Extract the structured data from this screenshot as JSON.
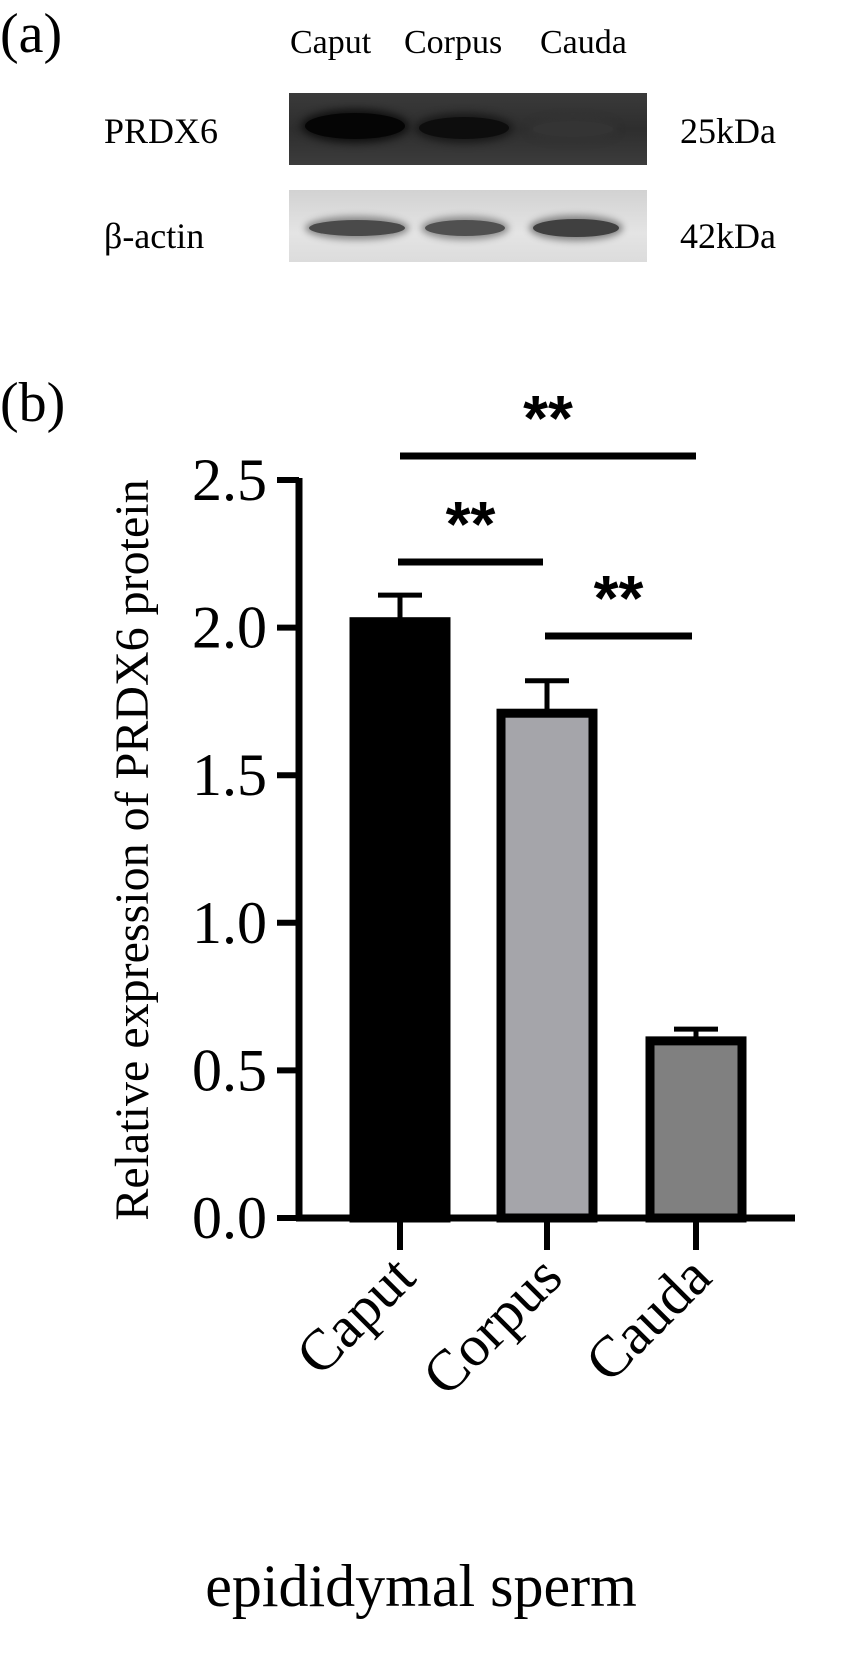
{
  "figure": {
    "panel_a_label": "(a)",
    "panel_b_label": "(b)"
  },
  "western_blot": {
    "lanes": [
      "Caput",
      "Corpus",
      "Cauda"
    ],
    "rows": [
      {
        "protein": "PRDX6",
        "size": "25kDa",
        "band_intensity": [
          1.0,
          0.85,
          0.1
        ]
      },
      {
        "protein": "β-actin",
        "size": "42kDa",
        "band_intensity": [
          0.8,
          0.75,
          0.8
        ]
      }
    ]
  },
  "chart_data": {
    "type": "bar",
    "categories": [
      "Caput",
      "Corpus",
      "Cauda"
    ],
    "values": [
      2.02,
      1.71,
      0.6
    ],
    "errors": [
      0.09,
      0.11,
      0.04
    ],
    "colors": [
      "#000000",
      "#a5a5aa",
      "#808080"
    ],
    "title": "",
    "xlabel": "epididymal sperm",
    "ylabel": "Relative expression of PRDX6 protein",
    "ylim": [
      0,
      2.5
    ],
    "yticks": [
      "0.0",
      "0.5",
      "1.0",
      "1.5",
      "2.0",
      "2.5"
    ],
    "grid": false,
    "significance": [
      {
        "from": "Caput",
        "to": "Cauda",
        "label": "**"
      },
      {
        "from": "Caput",
        "to": "Corpus",
        "label": "**"
      },
      {
        "from": "Corpus",
        "to": "Cauda",
        "label": "**"
      }
    ]
  }
}
